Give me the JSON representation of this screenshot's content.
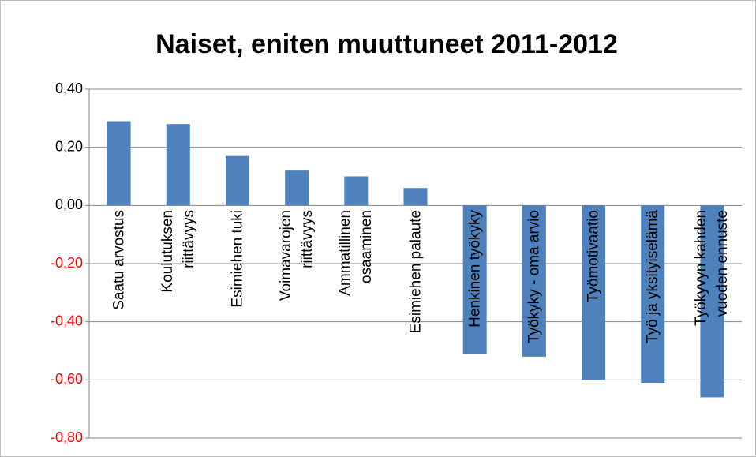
{
  "chart_data": {
    "type": "bar",
    "title": "Naiset,  eniten muuttuneet 2011-2012",
    "categories": [
      "Saatu arvostus",
      "Koulutuksen\nriittävyys",
      "Esimiehen tuki",
      "Voimavarojen\nriittävyys",
      "Ammatillinen\nosaaminen",
      "Esimiehen palaute",
      "Henkinen työkyky",
      "Työkyky - oma arvio",
      "Työmotivaatio",
      "Työ ja yksityiselämä",
      "Työkyvyn kahden\nvuoden ennuste"
    ],
    "values": [
      0.29,
      0.28,
      0.17,
      0.12,
      0.1,
      0.06,
      -0.51,
      -0.52,
      -0.6,
      -0.61,
      -0.66
    ],
    "color": "#4f81bd",
    "ylim": [
      -0.8,
      0.4
    ],
    "yticks": [
      {
        "value": 0.4,
        "label": "0,40"
      },
      {
        "value": 0.2,
        "label": "0,20"
      },
      {
        "value": 0,
        "label": "0,00"
      },
      {
        "value": -0.2,
        "label": "-0,20"
      },
      {
        "value": -0.4,
        "label": "-0,40"
      },
      {
        "value": -0.6,
        "label": "-0,60"
      },
      {
        "value": -0.8,
        "label": "-0,80"
      }
    ],
    "negative_tick_color": "#ff0000",
    "grid": true
  }
}
